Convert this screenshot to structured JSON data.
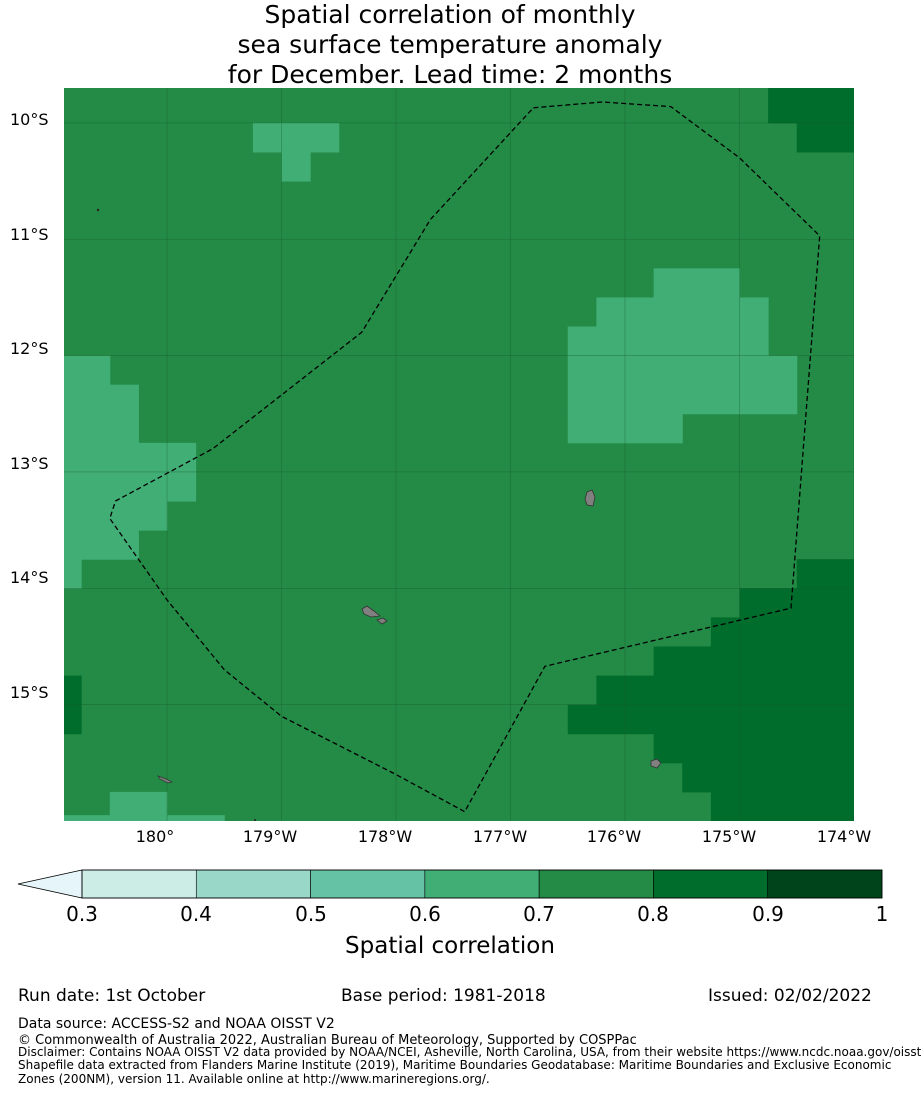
{
  "title": {
    "line1": "Spatial correlation of monthly",
    "line2": "sea surface temperature anomaly",
    "line3": "for December. Lead time: 2 months"
  },
  "axes": {
    "lat_labels": [
      "10°S",
      "11°S",
      "12°S",
      "13°S",
      "14°S",
      "15°S"
    ],
    "lon_labels": [
      "180°",
      "179°W",
      "178°W",
      "177°W",
      "176°W",
      "175°W",
      "174°W"
    ]
  },
  "colorbar": {
    "ticks": [
      "0.3",
      "0.4",
      "0.5",
      "0.6",
      "0.7",
      "0.8",
      "0.9",
      "1"
    ],
    "label": "Spatial correlation",
    "colors": [
      "#ccece6",
      "#99d8c9",
      "#66c2a4",
      "#41ae76",
      "#238b45",
      "#006d2c",
      "#00441b"
    ],
    "under_color": "#e5f5f9"
  },
  "footer": {
    "run_date": "Run date: 1st October",
    "base_period": "Base period: 1981-2018",
    "issued": "Issued: 02/02/2022",
    "data_source": "Data source: ACCESS-S2 and NOAA OISST V2",
    "copyright": "© Commonwealth of Australia 2022, Australian Bureau of Meteorology, Supported by COSPPac",
    "disclaimer1": "Disclaimer: Contains NOAA OISST V2 data provided by NOAA/NCEI, Asheville, North Carolina, USA, from their website https://www.ncdc.noaa.gov/oisst",
    "disclaimer2": "Shapefile data extracted from Flanders Marine Institute (2019), Maritime Boundaries Geodatabase: Maritime Boundaries and Exclusive Economic",
    "disclaimer3": "Zones (200NM), version 11. Available online at http://www.marineregions.org/."
  },
  "map_data": {
    "type": "heatmap",
    "lon_range": [
      -180.9,
      -174.0
    ],
    "lat_range": [
      -16.0,
      -9.7
    ],
    "cell_deg": 0.25,
    "base_value": 0.75,
    "regions": [
      {
        "value": 0.85,
        "cells": [
          [
            -174.75,
            -9.7,
            -174.0,
            -10.0
          ],
          [
            -174.5,
            -10.0,
            -174.0,
            -10.25
          ]
        ]
      },
      {
        "value": 0.65,
        "cells": [
          [
            -179.25,
            -10.0,
            -178.5,
            -10.25
          ],
          [
            -179.0,
            -10.25,
            -178.75,
            -10.5
          ]
        ]
      },
      {
        "value": 0.65,
        "cells": [
          [
            -175.75,
            -11.25,
            -175.0,
            -11.5
          ],
          [
            -176.25,
            -11.5,
            -174.75,
            -11.75
          ],
          [
            -176.5,
            -11.75,
            -174.75,
            -12.0
          ],
          [
            -176.5,
            -12.0,
            -174.5,
            -12.5
          ],
          [
            -176.5,
            -12.5,
            -175.5,
            -12.75
          ]
        ]
      },
      {
        "value": 0.65,
        "cells": [
          [
            -180.9,
            -12.0,
            -180.5,
            -12.25
          ],
          [
            -180.9,
            -12.25,
            -180.25,
            -12.75
          ],
          [
            -180.9,
            -12.75,
            -179.75,
            -13.25
          ],
          [
            -180.9,
            -13.25,
            -180.0,
            -13.5
          ],
          [
            -180.9,
            -13.5,
            -180.25,
            -13.75
          ],
          [
            -180.9,
            -13.75,
            -180.75,
            -14.0
          ]
        ]
      },
      {
        "value": 0.85,
        "cells": [
          [
            -174.5,
            -13.75,
            -174.0,
            -14.0
          ],
          [
            -175.0,
            -14.0,
            -174.0,
            -14.25
          ],
          [
            -175.25,
            -14.25,
            -174.0,
            -14.5
          ],
          [
            -175.75,
            -14.5,
            -174.0,
            -14.75
          ],
          [
            -176.25,
            -14.75,
            -174.0,
            -15.0
          ],
          [
            -176.5,
            -15.0,
            -174.0,
            -15.25
          ],
          [
            -175.75,
            -15.25,
            -174.0,
            -15.5
          ],
          [
            -175.5,
            -15.5,
            -174.0,
            -15.75
          ],
          [
            -175.25,
            -15.75,
            -174.0,
            -16.0
          ]
        ]
      },
      {
        "value": 0.85,
        "cells": [
          [
            -180.9,
            -14.75,
            -180.75,
            -15.25
          ]
        ]
      },
      {
        "value": 0.65,
        "cells": [
          [
            -180.5,
            -15.75,
            -180.0,
            -16.0
          ],
          [
            -181.0,
            -15.95,
            -180.5,
            -16.0
          ],
          [
            -180.25,
            -15.95,
            -179.5,
            -16.0
          ]
        ]
      }
    ],
    "eez_boundary": [
      [
        -176.8,
        -9.87
      ],
      [
        -176.2,
        -9.82
      ],
      [
        -175.6,
        -9.86
      ],
      [
        -175.0,
        -10.3
      ],
      [
        -174.3,
        -10.97
      ],
      [
        -174.55,
        -14.17
      ],
      [
        -176.7,
        -14.67
      ],
      [
        -177.4,
        -15.92
      ],
      [
        -178.0,
        -15.6
      ],
      [
        -178.5,
        -15.35
      ],
      [
        -179.0,
        -15.1
      ],
      [
        -179.5,
        -14.7
      ],
      [
        -180.0,
        -14.1
      ],
      [
        -180.5,
        -13.4
      ],
      [
        -180.45,
        -13.25
      ],
      [
        -179.6,
        -12.8
      ],
      [
        -178.3,
        -11.8
      ],
      [
        -177.7,
        -10.83
      ],
      [
        -176.8,
        -9.87
      ]
    ],
    "land_color": "#808080"
  }
}
